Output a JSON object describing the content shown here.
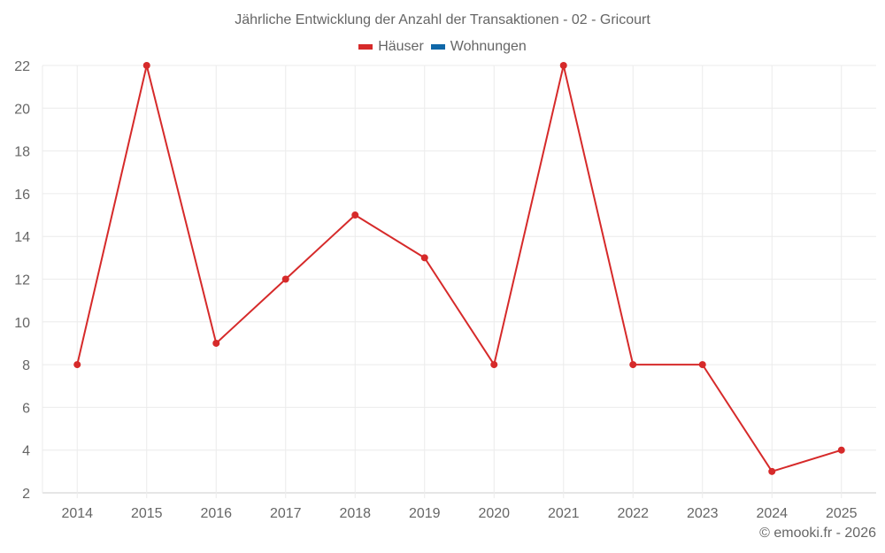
{
  "chart_data": {
    "type": "line",
    "title": "Jährliche Entwicklung der Anzahl der Transaktionen - 02 - Gricourt",
    "categories": [
      "2014",
      "2015",
      "2016",
      "2017",
      "2018",
      "2019",
      "2020",
      "2021",
      "2022",
      "2023",
      "2024",
      "2025"
    ],
    "series": [
      {
        "name": "Häuser",
        "color": "#d62a2a",
        "values": [
          8,
          22,
          9,
          12,
          15,
          13,
          8,
          22,
          8,
          8,
          3,
          4
        ]
      },
      {
        "name": "Wohnungen",
        "color": "#0f67a8",
        "values": []
      }
    ],
    "xlabel": "",
    "ylabel": "",
    "ylim": [
      2,
      22
    ],
    "yticks": [
      2,
      4,
      6,
      8,
      10,
      12,
      14,
      16,
      18,
      20,
      22
    ],
    "grid": true,
    "legend_position": "top"
  },
  "header": {
    "title": "Jährliche Entwicklung der Anzahl der Transaktionen - 02 - Gricourt"
  },
  "legend": {
    "items": [
      {
        "label": "Häuser",
        "color": "#d62a2a"
      },
      {
        "label": "Wohnungen",
        "color": "#0f67a8"
      }
    ]
  },
  "footer": {
    "credit": "© emooki.fr - 2026"
  }
}
